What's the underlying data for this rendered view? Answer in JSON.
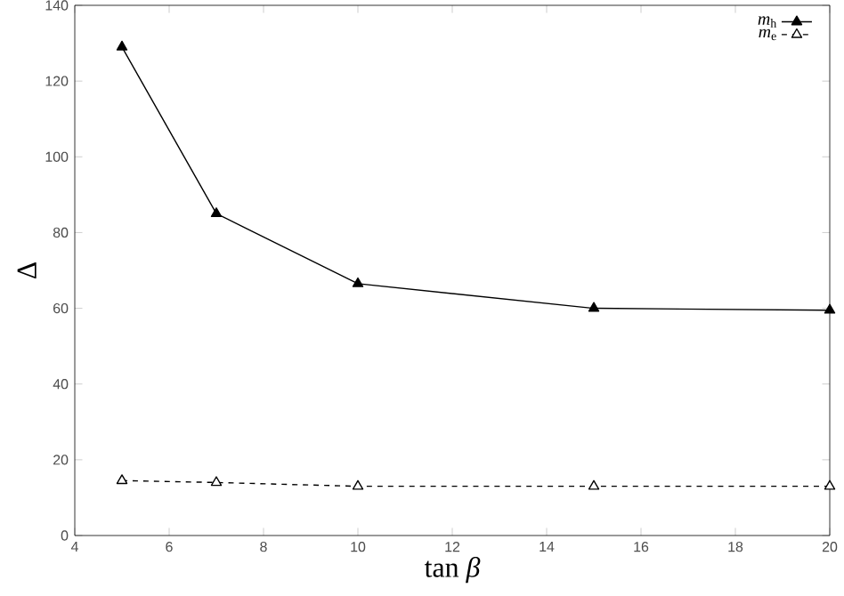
{
  "chart_data": {
    "type": "line",
    "xlabel": "tan *β*",
    "ylabel": "Δ",
    "x": [
      5,
      7,
      10,
      15,
      20
    ],
    "series": [
      {
        "name": "*m*$_{h}$",
        "color": "#000000",
        "values": [
          129,
          85,
          66.5,
          60,
          59.5
        ],
        "marker": "triangle",
        "line_style": "solid"
      },
      {
        "name": "*m*$_{e}$",
        "color": "#000000",
        "values": [
          14.5,
          14,
          13,
          13,
          13
        ],
        "marker": "triangle",
        "line_style": "dashed"
      }
    ],
    "xlim": [
      4,
      20
    ],
    "ylim": [
      0,
      140
    ],
    "xticks": [
      4,
      6,
      8,
      10,
      12,
      14,
      16,
      18,
      20
    ],
    "yticks": [
      0,
      20,
      40,
      60,
      80,
      100,
      120,
      140
    ],
    "grid": false,
    "legend": "top right"
  }
}
